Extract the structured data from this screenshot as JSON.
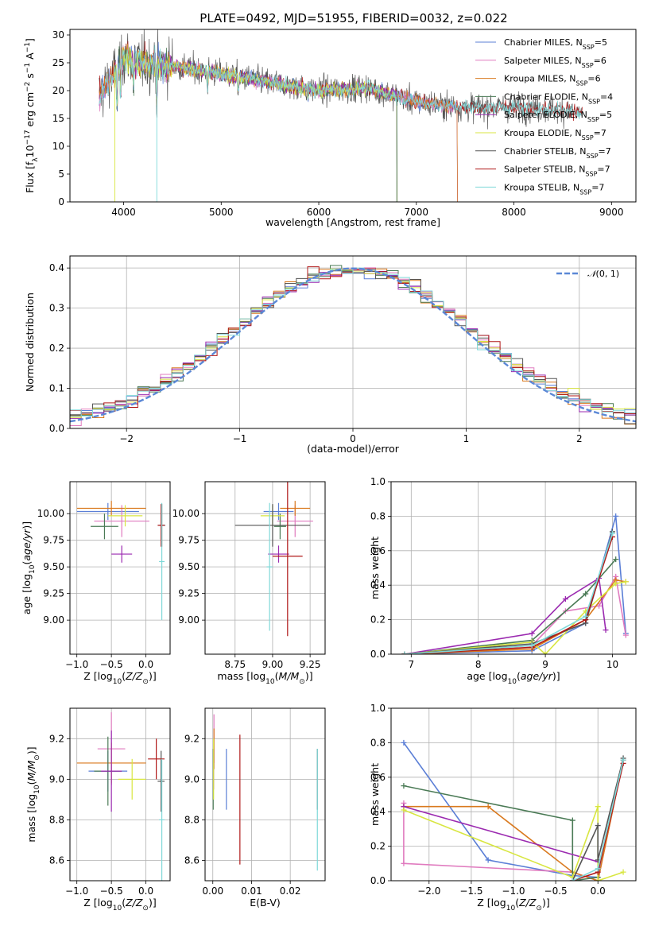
{
  "figure_title": "PLATE=0492, MJD=51955, FIBERID=0032, z=0.022",
  "colors": {
    "Chabrier MILES": "#5b7fd6",
    "Salpeter MILES": "#e07bbf",
    "Kroupa MILES": "#d9791e",
    "Chabrier ELODIE": "#4a7a55",
    "Salpeter ELODIE": "#9b2ab0",
    "Kroupa ELODIE": "#d8e640",
    "Chabrier STELIB": "#555555",
    "Salpeter STELIB": "#b01818",
    "Kroupa STELIB": "#7fd8d8"
  },
  "chart_data": [
    {
      "id": "spectrum",
      "type": "line",
      "title": "PLATE=0492, MJD=51955, FIBERID=0032, z=0.022",
      "xlabel": "wavelength [Angstrom, rest frame]",
      "ylabel": "Flux [f_λ 10^-17 erg cm^-2 s^-1 A^-1]",
      "xlim": [
        3450,
        9250
      ],
      "ylim": [
        0,
        31
      ],
      "xticks": [
        "4000",
        "5000",
        "6000",
        "7000",
        "8000",
        "9000"
      ],
      "yticks": [
        "0",
        "5",
        "10",
        "15",
        "20",
        "25",
        "30"
      ],
      "grid": false,
      "legend_position": "top-right",
      "legend": [
        {
          "name": "Chabrier MILES",
          "base": "Chabrier MILES, N",
          "sub": "SSP",
          "suffix": "=5"
        },
        {
          "name": "Salpeter MILES",
          "base": "Salpeter MILES, N",
          "sub": "SSP",
          "suffix": "=6"
        },
        {
          "name": "Kroupa MILES",
          "base": "Kroupa MILES, N",
          "sub": "SSP",
          "suffix": "=6"
        },
        {
          "name": "Chabrier ELODIE",
          "base": "Chabrier ELODIE, N",
          "sub": "SSP",
          "suffix": "=4"
        },
        {
          "name": "Salpeter ELODIE",
          "base": "Salpeter ELODIE, N",
          "sub": "SSP",
          "suffix": "=5"
        },
        {
          "name": "Kroupa ELODIE",
          "base": "Kroupa ELODIE, N",
          "sub": "SSP",
          "suffix": "=7"
        },
        {
          "name": "Chabrier STELIB",
          "base": "Chabrier STELIB, N",
          "sub": "SSP",
          "suffix": "=7"
        },
        {
          "name": "Salpeter STELIB",
          "base": "Salpeter STELIB, N",
          "sub": "SSP",
          "suffix": "=7"
        },
        {
          "name": "Kroupa STELIB",
          "base": "Kroupa STELIB, N",
          "sub": "SSP",
          "suffix": "=7"
        }
      ],
      "continuum_anchors": [
        [
          3750,
          19
        ],
        [
          3900,
          23
        ],
        [
          4000,
          26
        ],
        [
          4200,
          25
        ],
        [
          4500,
          24.5
        ],
        [
          5000,
          23
        ],
        [
          5500,
          21.5
        ],
        [
          6000,
          20
        ],
        [
          6500,
          20.5
        ],
        [
          6800,
          19
        ],
        [
          7000,
          18
        ],
        [
          7200,
          17.5
        ],
        [
          7500,
          17
        ],
        [
          8000,
          17
        ],
        [
          8500,
          16.5
        ],
        [
          8700,
          16
        ]
      ],
      "series_ranges": {
        "Chabrier MILES": [
          3750,
          7420
        ],
        "Salpeter MILES": [
          3750,
          7420
        ],
        "Kroupa MILES": [
          3750,
          7420
        ],
        "Chabrier ELODIE": [
          3900,
          6800
        ],
        "Salpeter ELODIE": [
          3900,
          6800
        ],
        "Kroupa ELODIE": [
          3900,
          6800
        ],
        "Chabrier STELIB": [
          3750,
          8700
        ],
        "Salpeter STELIB": [
          3750,
          8700
        ],
        "Kroupa STELIB": [
          3750,
          8700
        ]
      }
    },
    {
      "id": "residuals",
      "type": "histogram",
      "xlabel": "(data-model)/error",
      "ylabel": "Normed distribution",
      "xlim": [
        -2.5,
        2.5
      ],
      "ylim": [
        0,
        0.43
      ],
      "xticks": [
        "−2",
        "−1",
        "0",
        "1",
        "2"
      ],
      "yticks": [
        "0.0",
        "0.1",
        "0.2",
        "0.3",
        "0.4"
      ],
      "grid": true,
      "legend_position": "top-right",
      "reference_label": "N(0,1)",
      "bins": 50
    },
    {
      "id": "age_vs_Z",
      "type": "scatter",
      "xlabel": "Z [log10(Z/Z☉)]",
      "ylabel": "age [log10(age/yr)]",
      "xlim": [
        -1.1,
        0.35
      ],
      "ylim": [
        8.68,
        10.3
      ],
      "xticks": [
        "−1.0",
        "−0.5",
        "0.0"
      ],
      "yticks": [
        "9.00",
        "9.25",
        "9.50",
        "9.75",
        "10.00"
      ],
      "grid": true,
      "points": [
        {
          "series": "Chabrier MILES",
          "x": -0.55,
          "y": 10.02,
          "xerr": 0.45,
          "yerr": 0.08
        },
        {
          "series": "Salpeter MILES",
          "x": -0.35,
          "y": 9.93,
          "xerr": 0.4,
          "yerr": 0.15
        },
        {
          "series": "Kroupa MILES",
          "x": -0.5,
          "y": 10.05,
          "xerr": 0.5,
          "yerr": 0.07
        },
        {
          "series": "Chabrier ELODIE",
          "x": -0.6,
          "y": 9.88,
          "xerr": 0.2,
          "yerr": 0.12
        },
        {
          "series": "Salpeter ELODIE",
          "x": -0.35,
          "y": 9.62,
          "xerr": 0.15,
          "yerr": 0.08
        },
        {
          "series": "Kroupa ELODIE",
          "x": -0.3,
          "y": 9.98,
          "xerr": 0.25,
          "yerr": 0.1
        },
        {
          "series": "Chabrier STELIB",
          "x": 0.23,
          "y": 9.89,
          "xerr": 0.05,
          "yerr": 0.2
        },
        {
          "series": "Salpeter STELIB",
          "x": 0.22,
          "y": 9.89,
          "xerr": 0.05,
          "yerr": 0.2
        },
        {
          "series": "Kroupa STELIB",
          "x": 0.23,
          "y": 9.55,
          "xerr": 0.04,
          "yerr": 0.55
        }
      ]
    },
    {
      "id": "age_vs_mass",
      "type": "scatter",
      "xlabel": "mass [log10(M/M☉)]",
      "ylabel": "",
      "xlim": [
        8.55,
        9.35
      ],
      "ylim": [
        8.68,
        10.3
      ],
      "xticks": [
        "8.75",
        "9.00",
        "9.25"
      ],
      "yticks": [
        "9.00",
        "9.25",
        "9.50",
        "9.75",
        "10.00"
      ],
      "grid": true,
      "points": [
        {
          "series": "Chabrier MILES",
          "x": 9.04,
          "y": 10.02,
          "xerr": 0.1,
          "yerr": 0.08
        },
        {
          "series": "Salpeter MILES",
          "x": 9.15,
          "y": 9.93,
          "xerr": 0.12,
          "yerr": 0.15
        },
        {
          "series": "Kroupa MILES",
          "x": 9.15,
          "y": 10.05,
          "xerr": 0.1,
          "yerr": 0.07
        },
        {
          "series": "Chabrier ELODIE",
          "x": 9.05,
          "y": 9.88,
          "xerr": 0.04,
          "yerr": 0.12
        },
        {
          "series": "Salpeter ELODIE",
          "x": 9.04,
          "y": 9.62,
          "xerr": 0.07,
          "yerr": 0.08
        },
        {
          "series": "Kroupa ELODIE",
          "x": 9.0,
          "y": 9.98,
          "xerr": 0.08,
          "yerr": 0.1
        },
        {
          "series": "Chabrier STELIB",
          "x": 9.0,
          "y": 9.89,
          "xerr": 0.25,
          "yerr": 0.2
        },
        {
          "series": "Salpeter STELIB",
          "x": 9.1,
          "y": 9.6,
          "xerr": 0.1,
          "yerr": 0.75
        },
        {
          "series": "Kroupa STELIB",
          "x": 8.98,
          "y": 9.5,
          "xerr": 0.02,
          "yerr": 0.6
        }
      ]
    },
    {
      "id": "massweight_vs_age",
      "type": "line",
      "xlabel": "age [log10(age/yr)]",
      "ylabel": "mass weight",
      "xlim": [
        6.7,
        10.35
      ],
      "ylim": [
        0,
        1.0
      ],
      "xticks": [
        "7",
        "8",
        "9",
        "10"
      ],
      "yticks": [
        "0.0",
        "0.2",
        "0.4",
        "0.6",
        "0.8",
        "1.0"
      ],
      "grid": true,
      "series": [
        {
          "name": "Chabrier MILES",
          "points": [
            [
              6.9,
              0.0
            ],
            [
              8.8,
              0.02
            ],
            [
              9.6,
              0.18
            ],
            [
              10.05,
              0.8
            ],
            [
              10.2,
              0.12
            ]
          ]
        },
        {
          "name": "Salpeter MILES",
          "points": [
            [
              6.9,
              0.0
            ],
            [
              8.8,
              0.05
            ],
            [
              9.3,
              0.25
            ],
            [
              9.8,
              0.28
            ],
            [
              10.05,
              0.45
            ],
            [
              10.2,
              0.11
            ]
          ]
        },
        {
          "name": "Kroupa MILES",
          "points": [
            [
              6.9,
              0.0
            ],
            [
              8.8,
              0.03
            ],
            [
              9.6,
              0.2
            ],
            [
              10.05,
              0.43
            ],
            [
              10.2,
              0.42
            ]
          ]
        },
        {
          "name": "Chabrier ELODIE",
          "points": [
            [
              6.9,
              0.0
            ],
            [
              8.8,
              0.08
            ],
            [
              9.6,
              0.35
            ],
            [
              10.05,
              0.55
            ]
          ]
        },
        {
          "name": "Salpeter ELODIE",
          "points": [
            [
              6.9,
              0.0
            ],
            [
              8.8,
              0.12
            ],
            [
              9.3,
              0.32
            ],
            [
              9.8,
              0.44
            ],
            [
              9.9,
              0.14
            ]
          ]
        },
        {
          "name": "Kroupa ELODIE",
          "points": [
            [
              6.9,
              0.0
            ],
            [
              8.8,
              0.07
            ],
            [
              9.0,
              0.0
            ],
            [
              9.6,
              0.25
            ],
            [
              10.05,
              0.41
            ],
            [
              10.2,
              0.42
            ]
          ]
        },
        {
          "name": "Chabrier STELIB",
          "points": [
            [
              6.9,
              0.0
            ],
            [
              8.8,
              0.06
            ],
            [
              9.6,
              0.18
            ],
            [
              10.0,
              0.71
            ]
          ]
        },
        {
          "name": "Salpeter STELIB",
          "points": [
            [
              6.9,
              0.0
            ],
            [
              8.8,
              0.04
            ],
            [
              9.6,
              0.2
            ],
            [
              10.0,
              0.68
            ]
          ]
        },
        {
          "name": "Kroupa STELIB",
          "points": [
            [
              6.9,
              0.0
            ],
            [
              8.8,
              0.05
            ],
            [
              9.6,
              0.22
            ],
            [
              10.0,
              0.7
            ]
          ]
        }
      ]
    },
    {
      "id": "mass_vs_Z",
      "type": "scatter",
      "xlabel": "Z [log10(Z/Z☉)]",
      "ylabel": "mass [log10(M/M☉)]",
      "xlim": [
        -1.1,
        0.35
      ],
      "ylim": [
        8.5,
        9.35
      ],
      "xticks": [
        "−1.0",
        "−0.5",
        "0.0"
      ],
      "yticks": [
        "8.6",
        "8.8",
        "9.0",
        "9.2"
      ],
      "grid": true,
      "points": [
        {
          "series": "Chabrier MILES",
          "x": -0.55,
          "y": 9.04,
          "xerr": 0.28,
          "yerr": 0.1
        },
        {
          "series": "Salpeter MILES",
          "x": -0.5,
          "y": 9.15,
          "xerr": 0.2,
          "yerr": 0.18
        },
        {
          "series": "Kroupa MILES",
          "x": -0.5,
          "y": 9.08,
          "xerr": 0.5,
          "yerr": 0.1
        },
        {
          "series": "Chabrier ELODIE",
          "x": -0.55,
          "y": 9.04,
          "xerr": 0.2,
          "yerr": 0.17
        },
        {
          "series": "Salpeter ELODIE",
          "x": -0.5,
          "y": 9.04,
          "xerr": 0.15,
          "yerr": 0.2
        },
        {
          "series": "Kroupa ELODIE",
          "x": -0.2,
          "y": 9.0,
          "xerr": 0.2,
          "yerr": 0.1
        },
        {
          "series": "Chabrier STELIB",
          "x": 0.22,
          "y": 8.99,
          "xerr": 0.05,
          "yerr": 0.15
        },
        {
          "series": "Salpeter STELIB",
          "x": 0.15,
          "y": 9.1,
          "xerr": 0.12,
          "yerr": 0.1
        },
        {
          "series": "Kroupa STELIB",
          "x": 0.23,
          "y": 8.8,
          "xerr": 0.04,
          "yerr": 0.3
        }
      ]
    },
    {
      "id": "mass_vs_EBV",
      "type": "scatter",
      "xlabel": "E(B-V)",
      "ylabel": "",
      "xlim": [
        -0.002,
        0.029
      ],
      "ylim": [
        8.5,
        9.35
      ],
      "xticks": [
        "0.00",
        "0.01",
        "0.02"
      ],
      "yticks": [
        "8.6",
        "8.8",
        "9.0",
        "9.2"
      ],
      "grid": true,
      "points": [
        {
          "series": "Chabrier MILES",
          "x": 0.0035,
          "y": 9.0,
          "yerr": 0.15
        },
        {
          "series": "Salpeter MILES",
          "x": 0.0003,
          "y": 9.2,
          "yerr": 0.12
        },
        {
          "series": "Kroupa MILES",
          "x": 0.0003,
          "y": 9.15,
          "yerr": 0.1
        },
        {
          "series": "Chabrier ELODIE",
          "x": 0.0001,
          "y": 9.0,
          "yerr": 0.15
        },
        {
          "series": "Salpeter ELODIE",
          "x": 0.0002,
          "y": 9.05,
          "yerr": 0.1
        },
        {
          "series": "Kroupa ELODIE",
          "x": 0.0002,
          "y": 9.05,
          "yerr": 0.15
        },
        {
          "series": "Chabrier STELIB",
          "x": 0.027,
          "y": 9.0,
          "yerr": 0.15
        },
        {
          "series": "Salpeter STELIB",
          "x": 0.007,
          "y": 8.9,
          "yerr": 0.32
        },
        {
          "series": "Kroupa STELIB",
          "x": 0.027,
          "y": 8.85,
          "yerr": 0.3
        }
      ]
    },
    {
      "id": "massweight_vs_Z",
      "type": "line",
      "xlabel": "Z [log10(Z/Z☉)]",
      "ylabel": "mass weight",
      "xlim": [
        -2.45,
        0.45
      ],
      "ylim": [
        0,
        1.0
      ],
      "xticks": [
        "−2.0",
        "−1.5",
        "−1.0",
        "−0.5",
        "0.0"
      ],
      "yticks": [
        "0.0",
        "0.2",
        "0.4",
        "0.6",
        "0.8",
        "1.0"
      ],
      "grid": true,
      "series": [
        {
          "name": "Chabrier MILES",
          "points": [
            [
              -2.3,
              0.8
            ],
            [
              -1.3,
              0.12
            ],
            [
              -0.3,
              0.03
            ],
            [
              0.0,
              0.02
            ],
            [
              0.3,
              0.7
            ]
          ]
        },
        {
          "name": "Salpeter MILES",
          "points": [
            [
              -2.3,
              0.45
            ],
            [
              -2.3,
              0.1
            ],
            [
              -0.3,
              0.05
            ],
            [
              0.0,
              0.0
            ],
            [
              0.3,
              0.7
            ]
          ]
        },
        {
          "name": "Kroupa MILES",
          "points": [
            [
              -2.3,
              0.43
            ],
            [
              -1.3,
              0.43
            ],
            [
              -0.3,
              0.05
            ],
            [
              0.0,
              0.0
            ],
            [
              0.3,
              0.7
            ]
          ]
        },
        {
          "name": "Chabrier ELODIE",
          "points": [
            [
              -2.3,
              0.55
            ],
            [
              -0.3,
              0.35
            ],
            [
              -0.3,
              0.0
            ],
            [
              0.0,
              0.02
            ]
          ]
        },
        {
          "name": "Salpeter ELODIE",
          "points": [
            [
              -2.3,
              0.43
            ],
            [
              0.0,
              0.11
            ]
          ]
        },
        {
          "name": "Kroupa ELODIE",
          "points": [
            [
              -2.3,
              0.41
            ],
            [
              -0.3,
              0.02
            ],
            [
              0.0,
              0.43
            ],
            [
              0.0,
              0.0
            ],
            [
              0.3,
              0.05
            ]
          ]
        },
        {
          "name": "Chabrier STELIB",
          "points": [
            [
              -0.3,
              0.0
            ],
            [
              0.0,
              0.32
            ],
            [
              0.0,
              0.12
            ],
            [
              0.3,
              0.71
            ]
          ]
        },
        {
          "name": "Salpeter STELIB",
          "points": [
            [
              -0.3,
              0.0
            ],
            [
              0.0,
              0.05
            ],
            [
              0.3,
              0.68
            ]
          ]
        },
        {
          "name": "Kroupa STELIB",
          "points": [
            [
              -0.3,
              0.0
            ],
            [
              0.0,
              0.07
            ],
            [
              0.3,
              0.7
            ]
          ]
        }
      ]
    }
  ]
}
